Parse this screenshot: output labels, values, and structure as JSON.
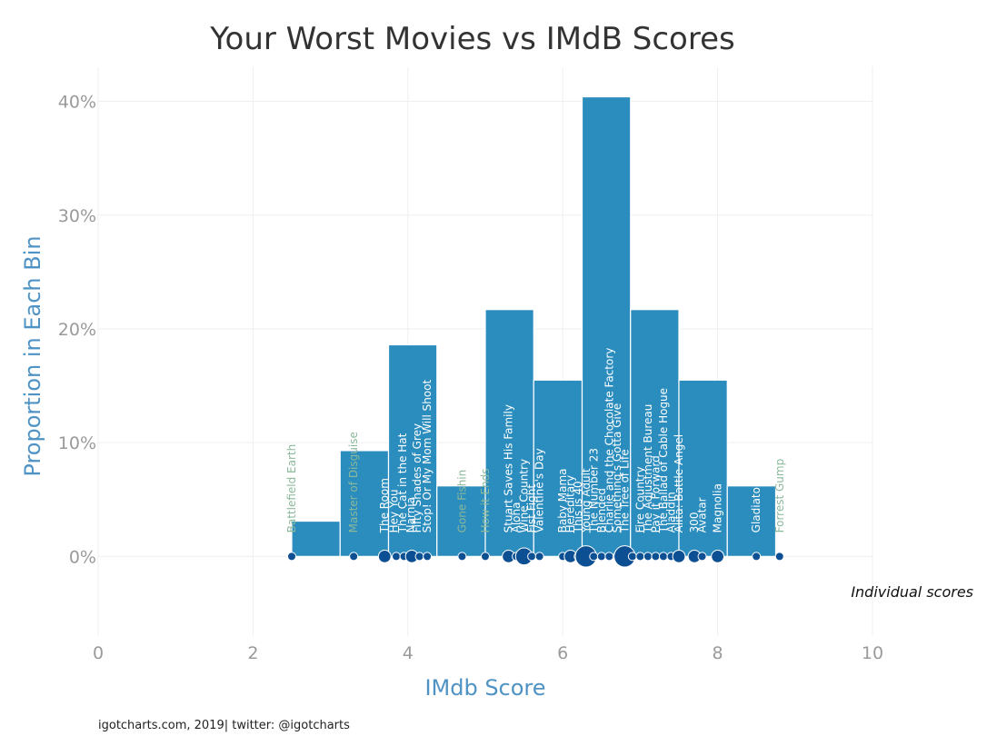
{
  "chart_data": {
    "type": "bar",
    "title": "Your Worst Movies vs IMdB Scores",
    "xlabel": "IMdb Score",
    "ylabel": "Proportion in Each Bin",
    "xlim": [
      0,
      10
    ],
    "ylim": [
      -0.07,
      0.43
    ],
    "x_ticks": [
      "0",
      "2",
      "4",
      "6",
      "8",
      "10"
    ],
    "x_tick_values": [
      0,
      2,
      4,
      6,
      8,
      10
    ],
    "y_ticks": [
      "0%",
      "10%",
      "20%",
      "30%",
      "40%"
    ],
    "y_tick_values": [
      0,
      0.1,
      0.2,
      0.3,
      0.4
    ],
    "grid": true,
    "colors": {
      "bar": "#2b8cbe",
      "bar_edge": "#ffffff",
      "point": "#0c4f93",
      "label_outside": "#8ab89a",
      "axis_title": "#4f93c4"
    },
    "histogram": {
      "bin_width": 0.625,
      "bins": [
        {
          "x0": 2.5,
          "value": 0.031
        },
        {
          "x0": 3.125,
          "value": 0.093
        },
        {
          "x0": 3.75,
          "value": 0.186
        },
        {
          "x0": 4.375,
          "value": 0.062
        },
        {
          "x0": 5.0,
          "value": 0.217
        },
        {
          "x0": 5.625,
          "value": 0.155
        },
        {
          "x0": 6.25,
          "value": 0.404
        },
        {
          "x0": 6.875,
          "value": 0.217
        },
        {
          "x0": 7.5,
          "value": 0.155
        },
        {
          "x0": 8.125,
          "value": 0.062
        }
      ]
    },
    "points": [
      {
        "x": 2.5,
        "size": 1
      },
      {
        "x": 3.3,
        "size": 1
      },
      {
        "x": 3.7,
        "size": 2
      },
      {
        "x": 3.85,
        "size": 1
      },
      {
        "x": 3.95,
        "size": 1
      },
      {
        "x": 4.05,
        "size": 2
      },
      {
        "x": 4.15,
        "size": 1
      },
      {
        "x": 4.25,
        "size": 1
      },
      {
        "x": 4.7,
        "size": 1
      },
      {
        "x": 5.0,
        "size": 1
      },
      {
        "x": 5.3,
        "size": 2
      },
      {
        "x": 5.4,
        "size": 1
      },
      {
        "x": 5.5,
        "size": 3
      },
      {
        "x": 5.6,
        "size": 1
      },
      {
        "x": 5.7,
        "size": 1
      },
      {
        "x": 6.0,
        "size": 1
      },
      {
        "x": 6.1,
        "size": 2
      },
      {
        "x": 6.2,
        "size": 1
      },
      {
        "x": 6.3,
        "size": 4
      },
      {
        "x": 6.4,
        "size": 1
      },
      {
        "x": 6.5,
        "size": 1
      },
      {
        "x": 6.6,
        "size": 1
      },
      {
        "x": 6.7,
        "size": 1
      },
      {
        "x": 6.8,
        "size": 4
      },
      {
        "x": 6.9,
        "size": 1
      },
      {
        "x": 7.0,
        "size": 1
      },
      {
        "x": 7.1,
        "size": 1
      },
      {
        "x": 7.2,
        "size": 1
      },
      {
        "x": 7.3,
        "size": 1
      },
      {
        "x": 7.4,
        "size": 1
      },
      {
        "x": 7.5,
        "size": 2
      },
      {
        "x": 7.7,
        "size": 2
      },
      {
        "x": 7.8,
        "size": 1
      },
      {
        "x": 8.0,
        "size": 2
      },
      {
        "x": 8.5,
        "size": 1
      },
      {
        "x": 8.8,
        "size": 1
      }
    ],
    "movie_labels": [
      {
        "text": "Battlefield Earth",
        "x": 2.5,
        "inside": false
      },
      {
        "text": "Master of Disguise",
        "x": 3.3,
        "inside": false
      },
      {
        "text": "The Room",
        "x": 3.7,
        "inside": true
      },
      {
        "text": "Hey You",
        "x": 3.82,
        "inside": true
      },
      {
        "text": "The Cat in the Hat",
        "x": 3.93,
        "inside": true
      },
      {
        "text": "Narnia",
        "x": 4.04,
        "inside": true
      },
      {
        "text": "Fifty Shades of Grey",
        "x": 4.12,
        "inside": true
      },
      {
        "text": "Stop! Or My Mom Will Shoot",
        "x": 4.25,
        "inside": true
      },
      {
        "text": "Gone Fishin",
        "x": 4.7,
        "inside": false
      },
      {
        "text": "How it Ends",
        "x": 5.0,
        "inside": false
      },
      {
        "text": "Stuart Saves His Family",
        "x": 5.3,
        "inside": true
      },
      {
        "text": "Aloha",
        "x": 5.4,
        "inside": true
      },
      {
        "text": "Wine Country",
        "x": 5.5,
        "inside": true
      },
      {
        "text": "Fist Fight",
        "x": 5.6,
        "inside": true
      },
      {
        "text": "Valentine's Day",
        "x": 5.7,
        "inside": true
      },
      {
        "text": "Baby Mama",
        "x": 6.0,
        "inside": true
      },
      {
        "text": "Hereditary",
        "x": 6.1,
        "inside": true
      },
      {
        "text": "This is 40",
        "x": 6.2,
        "inside": true
      },
      {
        "text": "Young Adult",
        "x": 6.3,
        "inside": true
      },
      {
        "text": "The Number 23",
        "x": 6.4,
        "inside": true
      },
      {
        "text": "Blended",
        "x": 6.5,
        "inside": true
      },
      {
        "text": "Charlie and the Chocolate Factory",
        "x": 6.6,
        "inside": true
      },
      {
        "text": "Something's Gotta Give",
        "x": 6.7,
        "inside": true
      },
      {
        "text": "The Tree of Life",
        "x": 6.8,
        "inside": true
      },
      {
        "text": "Fire Country",
        "x": 7.0,
        "inside": true
      },
      {
        "text": "The Adjustment Bureau",
        "x": 7.1,
        "inside": true
      },
      {
        "text": "Pay it Forward",
        "x": 7.2,
        "inside": true
      },
      {
        "text": "The Ballad of Cable Hogue",
        "x": 7.3,
        "inside": true
      },
      {
        "text": "Aladdin",
        "x": 7.4,
        "inside": true
      },
      {
        "text": "Alita: Battle Angel",
        "x": 7.5,
        "inside": true
      },
      {
        "text": "300",
        "x": 7.7,
        "inside": true
      },
      {
        "text": "Avatar",
        "x": 7.8,
        "inside": true
      },
      {
        "text": "Magnolia",
        "x": 8.0,
        "inside": true
      },
      {
        "text": "Gladiator",
        "x": 8.5,
        "inside": true
      },
      {
        "text": "Forrest Gump",
        "x": 8.8,
        "inside": false
      }
    ],
    "annotation": "Individual scores"
  },
  "footer": {
    "credit": "igotcharts.com, 2019| twitter: @igotcharts"
  }
}
